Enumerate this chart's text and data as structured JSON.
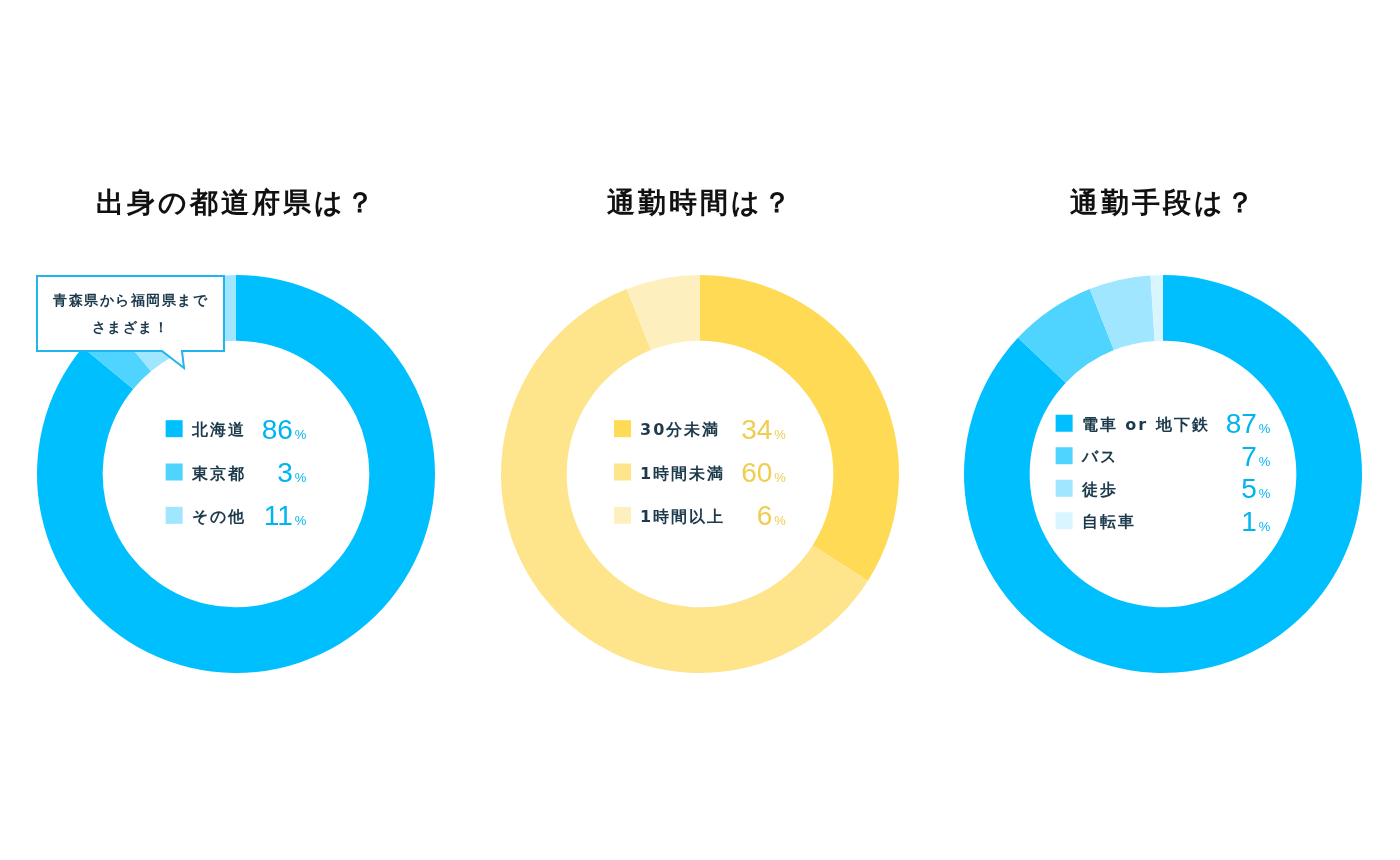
{
  "chart_data": [
    {
      "type": "donut",
      "title": "出身の都道府県は？",
      "categories": [
        "北海道",
        "東京都",
        "その他"
      ],
      "values": [
        86,
        3,
        11
      ],
      "colors": [
        "#00bfff",
        "#4fd4ff",
        "#a0e6ff"
      ],
      "value_labels": [
        "86%",
        "3%",
        "11%"
      ],
      "legend": "center",
      "annotations": [
        "青森県から福岡県までさまざま！"
      ]
    },
    {
      "type": "donut",
      "title": "通勤時間は？",
      "categories": [
        "30分未満",
        "1時間未満",
        "1時間以上"
      ],
      "values": [
        34,
        60,
        6
      ],
      "colors": [
        "#ffda55",
        "#fee48a",
        "#fef0be"
      ],
      "value_labels": [
        "34%",
        "60%",
        "6%"
      ],
      "legend": "center"
    },
    {
      "type": "donut",
      "title": "通勤手段は？",
      "categories": [
        "電車 or 地下鉄",
        "バス",
        "徒歩",
        "自転車"
      ],
      "values": [
        87,
        7,
        5,
        1
      ],
      "colors": [
        "#00bfff",
        "#4fd4ff",
        "#a0e6ff",
        "#d9f5ff"
      ],
      "value_labels": [
        "87%",
        "7%",
        "5%",
        "1%"
      ],
      "legend": "center"
    }
  ]
}
